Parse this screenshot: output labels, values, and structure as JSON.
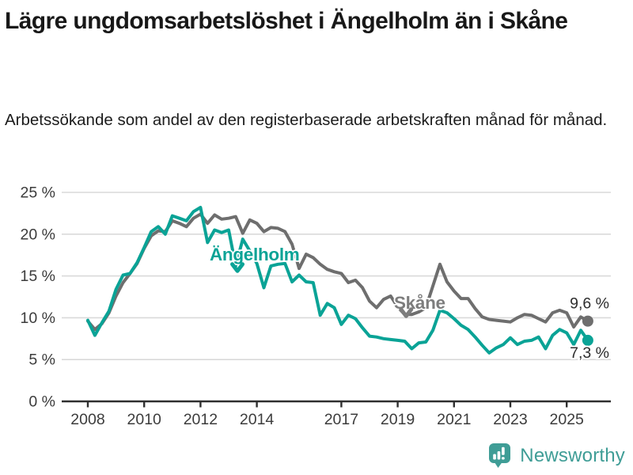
{
  "header": {
    "title": "Lägre ungdomsarbetslöshet i Ängelholm än i Skåne",
    "subtitle": "Arbetssökande som andel av den registerbaserade arbetskraften månad för månad."
  },
  "chart_data": {
    "type": "line",
    "title": "Lägre ungdomsarbetslöshet i Ängelholm än i Skåne",
    "subtitle": "Arbetssökande som andel av den registerbaserade arbetskraften månad för månad.",
    "unit": "%",
    "grid": true,
    "xlim": [
      2007.85,
      2026.5
    ],
    "ylim": [
      0,
      25
    ],
    "ytick_values": [
      0,
      5,
      10,
      15,
      20,
      25
    ],
    "ytick_labels": [
      "0 %",
      "5 %",
      "10 %",
      "15 %",
      "20 %",
      "25 %"
    ],
    "xtick_values": [
      2008,
      2010,
      2012,
      2014,
      2017,
      2019,
      2021,
      2023,
      2025
    ],
    "xtick_labels": [
      "2008",
      "2010",
      "2012",
      "2014",
      "2017",
      "2019",
      "2021",
      "2023",
      "2025"
    ],
    "x": [
      2008.0,
      2008.25,
      2008.5,
      2008.75,
      2009.0,
      2009.25,
      2009.5,
      2009.75,
      2010.0,
      2010.25,
      2010.5,
      2010.75,
      2011.0,
      2011.25,
      2011.5,
      2011.75,
      2012.0,
      2012.25,
      2012.5,
      2012.75,
      2013.0,
      2013.25,
      2013.5,
      2013.75,
      2014.0,
      2014.25,
      2014.5,
      2014.75,
      2015.0,
      2015.25,
      2015.5,
      2015.75,
      2016.0,
      2016.25,
      2016.5,
      2016.75,
      2017.0,
      2017.25,
      2017.5,
      2017.75,
      2018.0,
      2018.25,
      2018.5,
      2018.75,
      2019.0,
      2019.25,
      2019.5,
      2019.75,
      2020.0,
      2020.25,
      2020.5,
      2020.75,
      2021.0,
      2021.25,
      2021.5,
      2021.75,
      2022.0,
      2022.25,
      2022.5,
      2022.75,
      2023.0,
      2023.25,
      2023.5,
      2023.75,
      2024.0,
      2024.25,
      2024.5,
      2024.75,
      2025.0,
      2025.25,
      2025.5,
      2025.75
    ],
    "series": [
      {
        "id": "angelholm",
        "name": "Ängelholm",
        "color": "#0aa396",
        "label_color": "#0aa396",
        "end_label": "7,3 %",
        "end_value": 7.3,
        "end_label_position": "below",
        "values": [
          9.7,
          7.9,
          9.4,
          10.8,
          13.4,
          15.1,
          15.3,
          16.6,
          18.4,
          20.3,
          20.9,
          20.0,
          22.2,
          21.9,
          21.6,
          22.7,
          23.2,
          19.0,
          20.5,
          20.2,
          20.5,
          16.2,
          19.4,
          18.0,
          16.5,
          13.6,
          16.2,
          16.4,
          16.5,
          14.3,
          15.1,
          14.3,
          14.2,
          10.3,
          11.7,
          11.2,
          9.2,
          10.3,
          9.9,
          8.8,
          7.8,
          7.7,
          7.5,
          7.4,
          7.3,
          7.2,
          6.3,
          7.0,
          7.1,
          8.5,
          10.9,
          10.6,
          9.9,
          9.1,
          8.6,
          7.7,
          6.7,
          5.8,
          6.4,
          6.8,
          7.6,
          6.8,
          7.2,
          7.3,
          7.7,
          6.3,
          7.9,
          8.6,
          8.2,
          6.8,
          8.5,
          7.3
        ]
      },
      {
        "id": "skane",
        "name": "Skåne",
        "color": "#6e6e6e",
        "label_color": "#7d7d7d",
        "end_label": "9,6 %",
        "end_value": 9.6,
        "end_label_position": "above",
        "values": [
          9.6,
          8.6,
          9.3,
          10.6,
          12.6,
          14.2,
          15.3,
          16.5,
          18.3,
          19.8,
          20.4,
          20.3,
          21.6,
          21.3,
          20.9,
          21.9,
          22.4,
          21.3,
          22.3,
          21.8,
          21.9,
          22.1,
          20.1,
          21.7,
          21.3,
          20.3,
          20.8,
          20.7,
          20.3,
          18.8,
          15.9,
          17.6,
          17.2,
          16.4,
          15.8,
          15.5,
          15.3,
          14.2,
          14.5,
          13.6,
          12.0,
          11.2,
          12.2,
          12.6,
          11.3,
          10.4,
          10.4,
          10.7,
          11.2,
          13.8,
          16.4,
          14.3,
          13.2,
          12.3,
          12.3,
          11.1,
          10.1,
          9.8,
          9.7,
          9.6,
          9.5,
          10.0,
          10.4,
          10.3,
          9.9,
          9.5,
          10.6,
          10.9,
          10.6,
          8.9,
          10.1,
          9.6
        ]
      }
    ],
    "annotations": [
      {
        "series": "angelholm",
        "text": "Ängelholm",
        "x_year": 2013.92,
        "y_pct": 17.6,
        "arrow_x_year": 2013.31,
        "arrow_y_pct": 15.6
      },
      {
        "series": "skane",
        "text": "Skåne",
        "x_year": 2019.78,
        "y_pct": 11.85,
        "arrow_x_year": 2019.3,
        "arrow_y_pct": 10.2
      }
    ],
    "colors": {
      "grid": "#d9d9d9",
      "axis": "#2f2f2f",
      "tick_text": "#3c3c3c",
      "value_label_text": "#2d2d2d"
    }
  },
  "footer": {
    "brand": "Newsworthy",
    "brand_color": "#3f9d96"
  }
}
